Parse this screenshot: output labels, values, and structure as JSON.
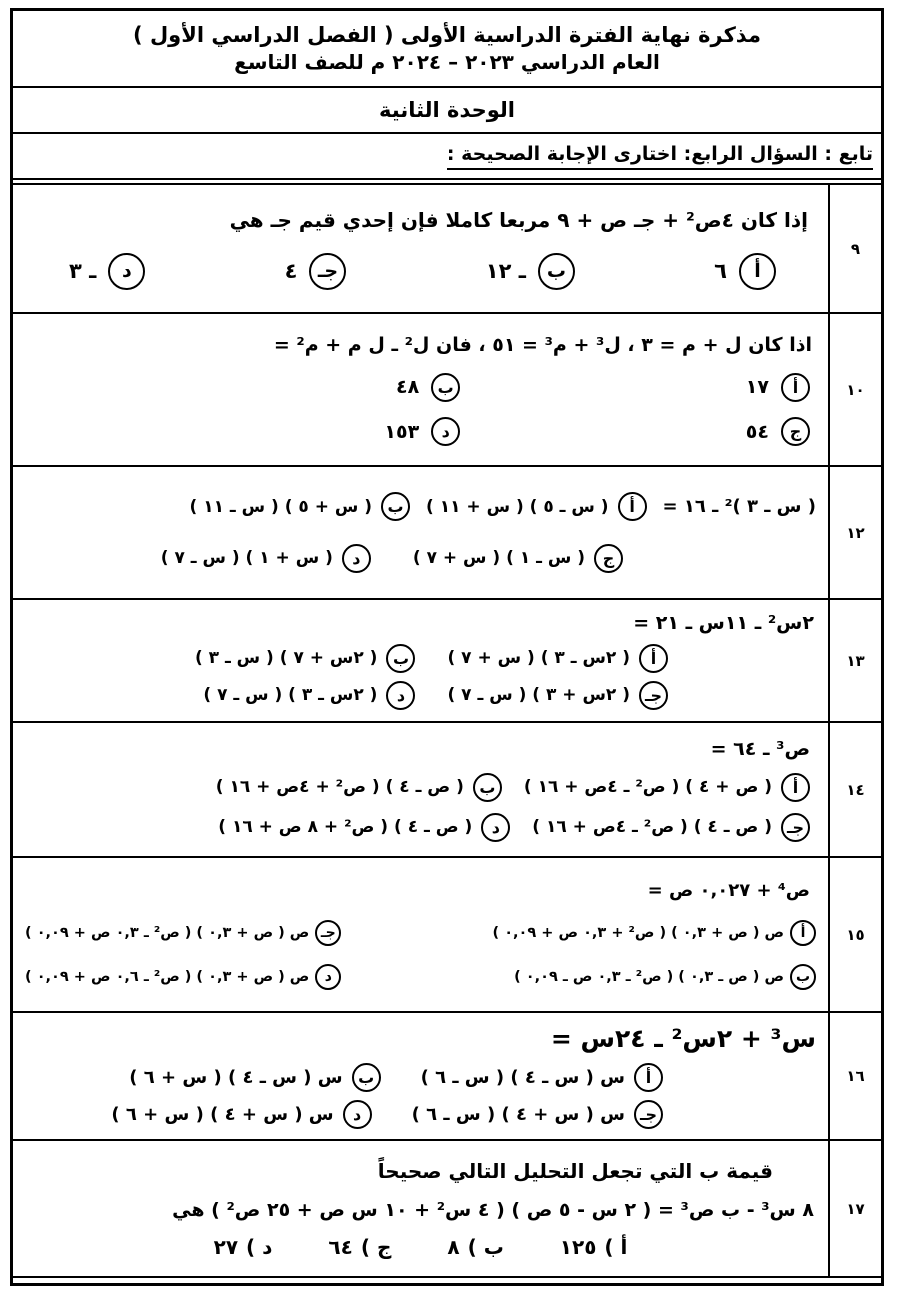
{
  "header": {
    "title_line1": "مذكرة نهاية الفترة الدراسية الأولى ( الفصل الدراسي الأول )",
    "title_line2": "العام الدراسي ٢٠٢٣ – ٢٠٢٤ م للصف التاسع",
    "unit_title": "الوحدة الثانية",
    "instruction": "تابع : السؤال الرابع: اختارى الإجابة الصحيحة :"
  },
  "questions": [
    {
      "number": "٩",
      "text": "إذا كان ٤ص² + جـ ص + ٩  مربعا كاملا فإن إحدي قيم جـ هي",
      "options": [
        {
          "letter": "أ",
          "text": "٦"
        },
        {
          "letter": "ب",
          "text": "ـ ١٢"
        },
        {
          "letter": "جـ",
          "text": "٤"
        },
        {
          "letter": "د",
          "text": "ـ ٣"
        }
      ]
    },
    {
      "number": "١٠",
      "text": "اذا كان ل + م = ٣ ، ل³ + م³ = ٥١ ، فان ل² ـ ل م + م² =",
      "options": [
        {
          "letter": "أ",
          "text": "١٧"
        },
        {
          "letter": "ب",
          "text": "٤٨"
        },
        {
          "letter": "ج",
          "text": "٥٤"
        },
        {
          "letter": "د",
          "text": "١٥٣"
        }
      ]
    },
    {
      "number": "١٢",
      "text": "( س ـ ٣ )² ـ ١٦ =",
      "options": [
        {
          "letter": "أ",
          "text": "( س ـ ٥ ) ( س + ١١ )"
        },
        {
          "letter": "ب",
          "text": "( س + ٥ ) ( س ـ ١١ )"
        },
        {
          "letter": "ج",
          "text": "( س ـ ١ ) ( س + ٧ )"
        },
        {
          "letter": "د",
          "text": "( س + ١ ) ( س ـ ٧ )"
        }
      ]
    },
    {
      "number": "١٣",
      "text": "٢س² ـ ١١س ـ ٢١ =",
      "options": [
        {
          "letter": "أ",
          "text": "( ٢س ـ ٣ ) ( س + ٧ )"
        },
        {
          "letter": "ب",
          "text": "( ٢س + ٧ ) ( س ـ ٣ )"
        },
        {
          "letter": "جـ",
          "text": "( ٢س + ٣ ) ( س ـ ٧ )"
        },
        {
          "letter": "د",
          "text": "( ٢س ـ ٣ ) ( س ـ ٧ )"
        }
      ]
    },
    {
      "number": "١٤",
      "text": "ص³ ـ ٦٤ =",
      "options": [
        {
          "letter": "أ",
          "text": "( ص + ٤ ) ( ص² ـ ٤ص + ١٦ )"
        },
        {
          "letter": "ب",
          "text": "( ص ـ ٤ ) ( ص² + ٤ص + ١٦ )"
        },
        {
          "letter": "جـ",
          "text": "( ص ـ ٤ ) ( ص² ـ ٤ص + ١٦ )"
        },
        {
          "letter": "د",
          "text": "( ص ـ ٤ ) ( ص² + ٨ ص + ١٦ )"
        }
      ]
    },
    {
      "number": "١٥",
      "text": "ص⁴ + ٠,٠٢٧ ص =",
      "options": [
        {
          "letter": "أ",
          "text": "ص ( ص + ٠,٣ ) ( ص² + ٠,٣ ص + ٠,٠٩ )"
        },
        {
          "letter": "ب",
          "text": "ص ( ص ـ ٠,٣ ) ( ص² ـ ٠,٣ ص ـ ٠,٠٩ )"
        },
        {
          "letter": "جـ",
          "text": "ص ( ص + ٠,٣ ) ( ص² ـ ٠,٣ ص + ٠,٠٩ )"
        },
        {
          "letter": "د",
          "text": "ص ( ص + ٠,٣ ) ( ص² ـ ٠,٦ ص + ٠,٠٩ )"
        }
      ]
    },
    {
      "number": "١٦",
      "text": "س³ + ٢س² ـ ٢٤س =",
      "options": [
        {
          "letter": "أ",
          "text": "س ( س ـ ٤ ) ( س ـ ٦ )"
        },
        {
          "letter": "ب",
          "text": "س ( س ـ ٤ ) ( س + ٦ )"
        },
        {
          "letter": "جـ",
          "text": "س ( س + ٤ ) ( س ـ ٦ )"
        },
        {
          "letter": "د",
          "text": "س ( س + ٤ ) ( س + ٦ )"
        }
      ]
    },
    {
      "number": "١٧",
      "text": "قيمة ب التي تجعل التحليل التالي صحيحاً",
      "formula": "٨ س³ - ب ص³ = ( ٢ س - ٥ ص ) ( ٤ س² + ١٠ س ص + ٢٥ ص² ) هي",
      "options": [
        {
          "letter": "أ )",
          "text": "١٢٥"
        },
        {
          "letter": "ب )",
          "text": "٨"
        },
        {
          "letter": "ج )",
          "text": "٦٤"
        },
        {
          "letter": "د )",
          "text": "٢٧"
        }
      ]
    }
  ]
}
